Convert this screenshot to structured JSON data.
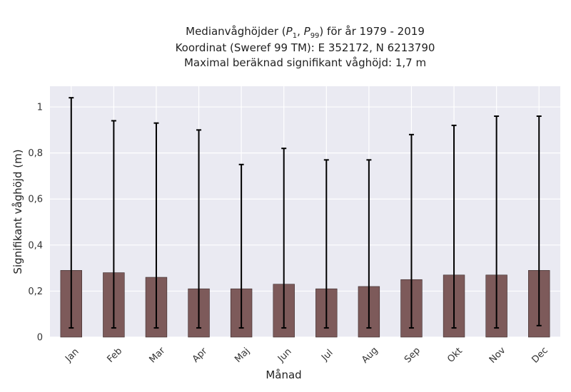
{
  "chart_data": {
    "type": "bar",
    "title_lines": [
      "Medianvåghöjder (P₁, P₉₉) för år 1979 - 2019",
      "Koordinat (Sweref 99 TM): E 352172, N 6213790",
      "Maximal beräknad signifikant våghöjd: 1,7 m"
    ],
    "xlabel": "Månad",
    "ylabel": "Signifikant våghöjd (m)",
    "categories": [
      "Jan",
      "Feb",
      "Mar",
      "Apr",
      "Maj",
      "Jun",
      "Jul",
      "Aug",
      "Sep",
      "Okt",
      "Nov",
      "Dec"
    ],
    "values": [
      0.29,
      0.28,
      0.26,
      0.21,
      0.21,
      0.23,
      0.21,
      0.22,
      0.25,
      0.27,
      0.27,
      0.29
    ],
    "p1": [
      0.04,
      0.04,
      0.04,
      0.04,
      0.04,
      0.04,
      0.04,
      0.04,
      0.04,
      0.04,
      0.04,
      0.05
    ],
    "p99": [
      1.04,
      0.94,
      0.93,
      0.9,
      0.75,
      0.82,
      0.77,
      0.77,
      0.88,
      0.92,
      0.96,
      0.96
    ],
    "ylim": [
      0,
      1.09
    ],
    "yticks": [
      0,
      0.2,
      0.4,
      0.6,
      0.8,
      1.0
    ],
    "ytick_labels": [
      "0",
      "0,2",
      "0,4",
      "0,6",
      "0,8",
      "1"
    ],
    "grid": true,
    "colors": {
      "bar": "#7d5a5a",
      "bar_edge": "#3a2a2a",
      "plot_bg": "#eaeaf2",
      "grid": "#ffffff",
      "errorbar": "#000000"
    }
  }
}
